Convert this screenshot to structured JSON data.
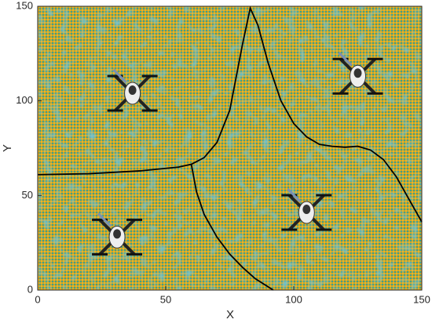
{
  "chart_data": {
    "type": "line",
    "xlabel": "X",
    "ylabel": "Y",
    "xlim": [
      0,
      150
    ],
    "ylim": [
      0,
      150
    ],
    "xticks": [
      0,
      50,
      100,
      150
    ],
    "yticks": [
      0,
      50,
      100,
      150
    ],
    "series": [
      {
        "color": "#000000",
        "x": [
          0,
          20,
          40,
          55,
          60,
          65,
          70,
          75,
          80,
          83,
          86,
          90,
          95,
          100,
          105,
          110,
          115,
          120,
          125,
          130,
          135,
          140,
          145,
          150
        ],
        "values": [
          61,
          61.5,
          63,
          65,
          66.5,
          70,
          78,
          95,
          130,
          149,
          140,
          120,
          100,
          88,
          81,
          77,
          76,
          75.5,
          76,
          74,
          69,
          60,
          48,
          36
        ]
      },
      {
        "color": "#000000",
        "x": [
          60,
          62,
          65,
          70,
          75,
          80,
          85,
          92
        ],
        "values": [
          66.5,
          52,
          40,
          28,
          19,
          12,
          6,
          0
        ]
      }
    ],
    "drones": {
      "x": [
        37,
        31,
        105,
        125
      ],
      "y": [
        104,
        28,
        41,
        113
      ]
    }
  }
}
